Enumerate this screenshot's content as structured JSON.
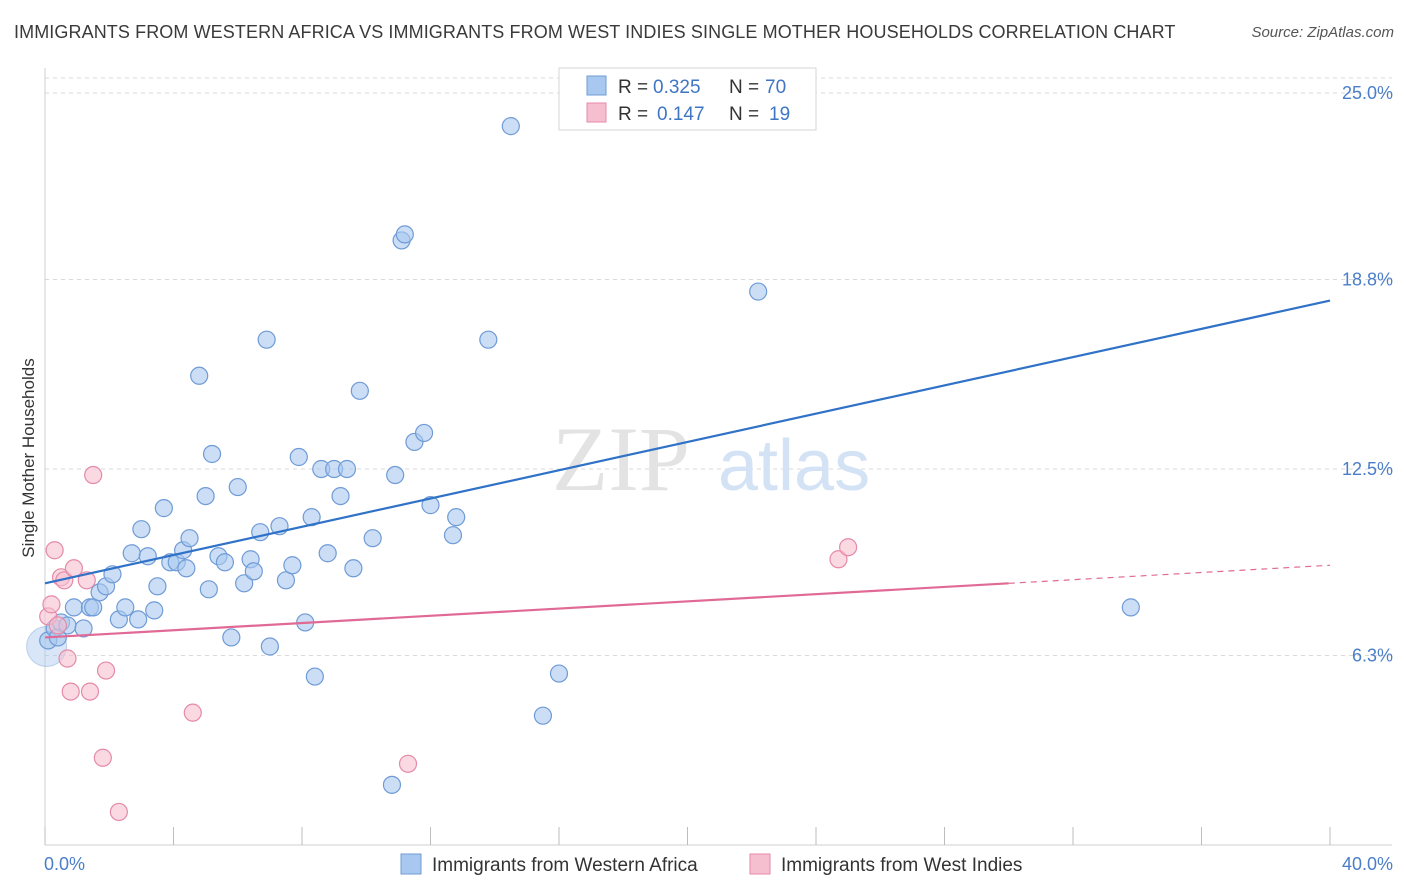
{
  "title": "IMMIGRANTS FROM WESTERN AFRICA VS IMMIGRANTS FROM WEST INDIES SINGLE MOTHER HOUSEHOLDS CORRELATION CHART",
  "source": "Source: ZipAtlas.com",
  "watermark": {
    "zip": "ZIP",
    "atlas": "atlas"
  },
  "colors": {
    "blue_fill": "#a9c8ef",
    "blue_stroke": "#6f9bd6",
    "blue_line": "#2f72c8",
    "pink_fill": "#f6bfd0",
    "pink_stroke": "#e58aa8",
    "pink_line": "#e06a95",
    "grid": "#d9d9d9",
    "axis_text": "#4a7ec8"
  },
  "legend": {
    "rows": [
      {
        "r_label": "R =",
        "r_value": "0.325",
        "n_label": "N =",
        "n_value": "70"
      },
      {
        "r_label": "R =",
        "r_value": "0.147",
        "n_label": "N =",
        "n_value": "19"
      }
    ]
  },
  "chart_data": {
    "type": "scatter",
    "xlabel": "",
    "ylabel": "Single Mother Households",
    "xlim": [
      0,
      40
    ],
    "ylim": [
      0,
      25.5
    ],
    "x_tick_labels": [
      "0.0%",
      "40.0%"
    ],
    "y_ticks": [
      6.3,
      12.5,
      18.8,
      25.0
    ],
    "y_tick_labels": [
      "6.3%",
      "12.5%",
      "18.8%",
      "25.0%"
    ],
    "grid": true,
    "legend_position": "top-center",
    "series": [
      {
        "name": "Immigrants from Western Africa",
        "color": "blue",
        "trend": {
          "x": [
            0,
            40
          ],
          "y": [
            8.7,
            18.1
          ]
        },
        "points": [
          [
            0.1,
            6.8
          ],
          [
            0.3,
            7.2
          ],
          [
            0.4,
            6.9
          ],
          [
            0.5,
            7.4
          ],
          [
            0.7,
            7.3
          ],
          [
            0.9,
            7.9
          ],
          [
            1.2,
            7.2
          ],
          [
            1.4,
            7.9
          ],
          [
            1.5,
            7.9
          ],
          [
            1.7,
            8.4
          ],
          [
            1.9,
            8.6
          ],
          [
            2.1,
            9.0
          ],
          [
            2.3,
            7.5
          ],
          [
            2.5,
            7.9
          ],
          [
            2.7,
            9.7
          ],
          [
            2.9,
            7.5
          ],
          [
            3.0,
            10.5
          ],
          [
            3.2,
            9.6
          ],
          [
            3.4,
            7.8
          ],
          [
            3.5,
            8.6
          ],
          [
            3.7,
            11.2
          ],
          [
            3.9,
            9.4
          ],
          [
            4.1,
            9.4
          ],
          [
            4.3,
            9.8
          ],
          [
            4.4,
            9.2
          ],
          [
            4.5,
            10.2
          ],
          [
            4.8,
            15.6
          ],
          [
            5.0,
            11.6
          ],
          [
            5.1,
            8.5
          ],
          [
            5.2,
            13.0
          ],
          [
            5.4,
            9.6
          ],
          [
            5.6,
            9.4
          ],
          [
            5.8,
            6.9
          ],
          [
            6.0,
            11.9
          ],
          [
            6.2,
            8.7
          ],
          [
            6.4,
            9.5
          ],
          [
            6.5,
            9.1
          ],
          [
            6.7,
            10.4
          ],
          [
            6.9,
            16.8
          ],
          [
            7.0,
            6.6
          ],
          [
            7.3,
            10.6
          ],
          [
            7.5,
            8.8
          ],
          [
            7.7,
            9.3
          ],
          [
            7.9,
            12.9
          ],
          [
            8.1,
            7.4
          ],
          [
            8.3,
            10.9
          ],
          [
            8.4,
            5.6
          ],
          [
            8.6,
            12.5
          ],
          [
            8.8,
            9.7
          ],
          [
            9.0,
            12.5
          ],
          [
            9.2,
            11.6
          ],
          [
            9.4,
            12.5
          ],
          [
            9.6,
            9.2
          ],
          [
            9.8,
            15.1
          ],
          [
            10.2,
            10.2
          ],
          [
            10.8,
            2.0
          ],
          [
            10.9,
            12.3
          ],
          [
            11.1,
            20.1
          ],
          [
            11.2,
            20.3
          ],
          [
            11.5,
            13.4
          ],
          [
            11.8,
            13.7
          ],
          [
            12.0,
            11.3
          ],
          [
            12.7,
            10.3
          ],
          [
            12.8,
            10.9
          ],
          [
            13.8,
            16.8
          ],
          [
            14.5,
            23.9
          ],
          [
            15.5,
            4.3
          ],
          [
            16.0,
            5.7
          ],
          [
            22.2,
            18.4
          ],
          [
            33.8,
            7.9
          ]
        ]
      },
      {
        "name": "Immigrants from West Indies",
        "color": "pink",
        "trend": {
          "x": [
            0,
            30
          ],
          "y": [
            6.9,
            8.7
          ],
          "dashed_to": {
            "x": 40,
            "y": 9.3
          }
        },
        "points": [
          [
            0.1,
            7.6
          ],
          [
            0.2,
            8.0
          ],
          [
            0.3,
            9.8
          ],
          [
            0.4,
            7.3
          ],
          [
            0.5,
            8.9
          ],
          [
            0.6,
            8.8
          ],
          [
            0.7,
            6.2
          ],
          [
            0.8,
            5.1
          ],
          [
            0.9,
            9.2
          ],
          [
            1.3,
            8.8
          ],
          [
            1.4,
            5.1
          ],
          [
            1.5,
            12.3
          ],
          [
            1.8,
            2.9
          ],
          [
            1.9,
            5.8
          ],
          [
            2.3,
            1.1
          ],
          [
            4.6,
            4.4
          ],
          [
            11.3,
            2.7
          ],
          [
            24.7,
            9.5
          ],
          [
            25.0,
            9.9
          ]
        ]
      }
    ]
  }
}
